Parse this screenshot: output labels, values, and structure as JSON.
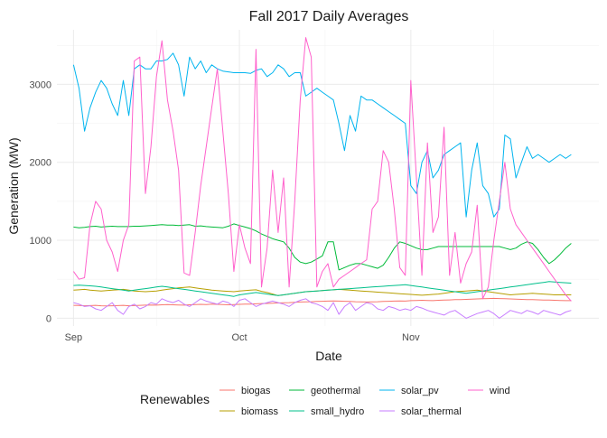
{
  "chart_data": {
    "type": "line",
    "title": "Fall 2017 Daily Averages",
    "xlabel": "Date",
    "ylabel": "Generation (MW)",
    "xlim": [
      "2017-08-29",
      "2017-12-05"
    ],
    "ylim": [
      -100,
      3700
    ],
    "x_ticks": [
      {
        "date": "2017-09-01",
        "label": "Sep"
      },
      {
        "date": "2017-10-01",
        "label": "Oct"
      },
      {
        "date": "2017-11-01",
        "label": "Nov"
      }
    ],
    "y_ticks": [
      0,
      1000,
      2000,
      3000
    ],
    "grid": true,
    "legend": {
      "title": "Renewables",
      "position": "bottom"
    },
    "x": [
      "2017-09-01",
      "2017-09-02",
      "2017-09-03",
      "2017-09-04",
      "2017-09-05",
      "2017-09-06",
      "2017-09-07",
      "2017-09-08",
      "2017-09-09",
      "2017-09-10",
      "2017-09-11",
      "2017-09-12",
      "2017-09-13",
      "2017-09-14",
      "2017-09-15",
      "2017-09-16",
      "2017-09-17",
      "2017-09-18",
      "2017-09-19",
      "2017-09-20",
      "2017-09-21",
      "2017-09-22",
      "2017-09-23",
      "2017-09-24",
      "2017-09-25",
      "2017-09-26",
      "2017-09-27",
      "2017-09-28",
      "2017-09-29",
      "2017-09-30",
      "2017-10-01",
      "2017-10-02",
      "2017-10-03",
      "2017-10-04",
      "2017-10-05",
      "2017-10-06",
      "2017-10-07",
      "2017-10-08",
      "2017-10-09",
      "2017-10-10",
      "2017-10-11",
      "2017-10-12",
      "2017-10-13",
      "2017-10-14",
      "2017-10-15",
      "2017-10-16",
      "2017-10-17",
      "2017-10-18",
      "2017-10-19",
      "2017-10-20",
      "2017-10-21",
      "2017-10-22",
      "2017-10-23",
      "2017-10-24",
      "2017-10-25",
      "2017-10-26",
      "2017-10-27",
      "2017-10-28",
      "2017-10-29",
      "2017-10-30",
      "2017-10-31",
      "2017-11-01",
      "2017-11-02",
      "2017-11-03",
      "2017-11-04",
      "2017-11-05",
      "2017-11-06",
      "2017-11-07",
      "2017-11-08",
      "2017-11-09",
      "2017-11-10",
      "2017-11-11",
      "2017-11-12",
      "2017-11-13",
      "2017-11-14",
      "2017-11-15",
      "2017-11-16",
      "2017-11-17",
      "2017-11-18",
      "2017-11-19",
      "2017-11-20",
      "2017-11-21",
      "2017-11-22",
      "2017-11-23",
      "2017-11-24",
      "2017-11-25",
      "2017-11-26",
      "2017-11-27",
      "2017-11-28",
      "2017-11-29",
      "2017-11-30"
    ],
    "series": [
      {
        "name": "biogas",
        "color": "#F8766D",
        "values": [
          165,
          163,
          160,
          162,
          165,
          160,
          158,
          160,
          162,
          165,
          160,
          162,
          165,
          168,
          170,
          168,
          172,
          175,
          172,
          170,
          168,
          172,
          175,
          178,
          175,
          180,
          178,
          175,
          172,
          175,
          178,
          180,
          182,
          185,
          188,
          190,
          192,
          195,
          198,
          200,
          205,
          208,
          210,
          212,
          215,
          218,
          220,
          222,
          220,
          218,
          215,
          212,
          210,
          208,
          210,
          212,
          215,
          218,
          220,
          222,
          220,
          225,
          228,
          230,
          228,
          225,
          230,
          232,
          235,
          238,
          240,
          242,
          245,
          248,
          250,
          252,
          255,
          252,
          250,
          248,
          245,
          242,
          240,
          238,
          236,
          234,
          232,
          230,
          228,
          226,
          225
        ]
      },
      {
        "name": "biomass",
        "color": "#B79F00",
        "values": [
          360,
          365,
          370,
          360,
          355,
          350,
          355,
          360,
          365,
          370,
          360,
          350,
          345,
          340,
          345,
          350,
          360,
          370,
          380,
          390,
          395,
          400,
          390,
          380,
          370,
          360,
          355,
          350,
          345,
          340,
          350,
          355,
          360,
          365,
          345,
          330,
          310,
          290,
          300,
          310,
          320,
          330,
          340,
          345,
          350,
          355,
          360,
          365,
          370,
          365,
          360,
          355,
          350,
          345,
          340,
          335,
          330,
          325,
          320,
          315,
          310,
          305,
          300,
          295,
          300,
          305,
          310,
          320,
          330,
          340,
          345,
          350,
          355,
          360,
          350,
          340,
          330,
          320,
          310,
          300,
          305,
          310,
          315,
          320,
          315,
          310,
          305,
          300,
          300,
          300,
          300
        ]
      },
      {
        "name": "geothermal",
        "color": "#00BA38",
        "values": [
          1170,
          1160,
          1165,
          1175,
          1180,
          1170,
          1175,
          1180,
          1175,
          1175,
          1175,
          1180,
          1180,
          1185,
          1190,
          1195,
          1200,
          1195,
          1195,
          1190,
          1195,
          1200,
          1180,
          1185,
          1175,
          1170,
          1165,
          1160,
          1180,
          1210,
          1190,
          1170,
          1150,
          1120,
          1080,
          1050,
          1020,
          1000,
          980,
          900,
          780,
          720,
          700,
          720,
          760,
          800,
          980,
          980,
          620,
          650,
          680,
          700,
          700,
          680,
          660,
          640,
          680,
          780,
          900,
          980,
          960,
          930,
          900,
          880,
          880,
          900,
          920,
          920,
          920,
          920,
          920,
          920,
          920,
          920,
          920,
          920,
          920,
          920,
          900,
          880,
          900,
          950,
          980,
          960,
          880,
          780,
          700,
          750,
          820,
          900,
          960
        ]
      },
      {
        "name": "small_hydro",
        "color": "#00C08B",
        "values": [
          420,
          425,
          420,
          415,
          410,
          400,
          390,
          380,
          370,
          360,
          350,
          360,
          370,
          380,
          390,
          400,
          410,
          400,
          390,
          380,
          370,
          360,
          350,
          340,
          330,
          320,
          310,
          300,
          290,
          280,
          300,
          310,
          320,
          330,
          320,
          310,
          300,
          290,
          300,
          310,
          320,
          330,
          340,
          345,
          350,
          355,
          360,
          365,
          370,
          375,
          380,
          385,
          390,
          395,
          400,
          405,
          410,
          415,
          420,
          425,
          430,
          420,
          410,
          400,
          390,
          380,
          370,
          360,
          350,
          340,
          330,
          320,
          330,
          340,
          350,
          360,
          370,
          380,
          390,
          400,
          410,
          420,
          430,
          440,
          450,
          460,
          470,
          465,
          460,
          455,
          450
        ]
      },
      {
        "name": "solar_pv",
        "color": "#00B4EF",
        "values": [
          3250,
          2950,
          2400,
          2700,
          2900,
          3050,
          2950,
          2750,
          2600,
          3050,
          2600,
          3200,
          3250,
          3200,
          3200,
          3300,
          3300,
          3320,
          3400,
          3250,
          2850,
          3350,
          3200,
          3300,
          3150,
          3250,
          3200,
          3170,
          3160,
          3150,
          3150,
          3150,
          3140,
          3180,
          3200,
          3100,
          3150,
          3250,
          3200,
          3100,
          3150,
          3150,
          2850,
          2900,
          2950,
          2900,
          2850,
          2800,
          2500,
          2150,
          2600,
          2400,
          2850,
          2800,
          2800,
          2750,
          2700,
          2650,
          2600,
          2550,
          2500,
          1700,
          1600,
          2000,
          2150,
          1800,
          1900,
          2100,
          2150,
          2200,
          2250,
          1300,
          1900,
          2250,
          1700,
          1600,
          1300,
          1400,
          2350,
          2300,
          1800,
          2000,
          2200,
          2050,
          2100,
          2050,
          2000,
          2050,
          2100,
          2050,
          2100
        ]
      },
      {
        "name": "solar_thermal",
        "color": "#C77CFF",
        "values": [
          200,
          180,
          150,
          160,
          120,
          100,
          150,
          200,
          100,
          50,
          150,
          180,
          120,
          150,
          200,
          180,
          250,
          220,
          200,
          230,
          180,
          150,
          200,
          250,
          220,
          200,
          180,
          220,
          200,
          150,
          230,
          250,
          200,
          150,
          180,
          200,
          220,
          200,
          180,
          150,
          200,
          230,
          250,
          200,
          180,
          150,
          100,
          200,
          50,
          150,
          200,
          100,
          150,
          200,
          180,
          120,
          100,
          150,
          130,
          100,
          120,
          100,
          150,
          130,
          100,
          80,
          60,
          40,
          80,
          100,
          50,
          0,
          30,
          60,
          80,
          100,
          60,
          0,
          50,
          100,
          80,
          60,
          100,
          80,
          50,
          100,
          80,
          60,
          40,
          80,
          100
        ]
      },
      {
        "name": "wind",
        "color": "#FF61CC",
        "values": [
          600,
          500,
          520,
          1200,
          1500,
          1400,
          1000,
          850,
          600,
          1000,
          1200,
          3300,
          3350,
          1600,
          2200,
          3100,
          3560,
          2800,
          2400,
          1900,
          580,
          550,
          1100,
          1700,
          2200,
          2700,
          3200,
          2400,
          1600,
          600,
          1200,
          900,
          700,
          3450,
          400,
          900,
          1900,
          1100,
          1800,
          400,
          1500,
          2800,
          3600,
          3350,
          400,
          600,
          700,
          400,
          500,
          550,
          600,
          650,
          700,
          750,
          1400,
          1500,
          2150,
          2000,
          1400,
          650,
          550,
          3050,
          1800,
          550,
          2250,
          1100,
          1300,
          2450,
          550,
          1100,
          450,
          700,
          850,
          1450,
          250,
          400,
          1000,
          1500,
          2000,
          1400,
          1200,
          1100,
          1000,
          900,
          800,
          700,
          600,
          500,
          400,
          300,
          220
        ]
      }
    ]
  }
}
